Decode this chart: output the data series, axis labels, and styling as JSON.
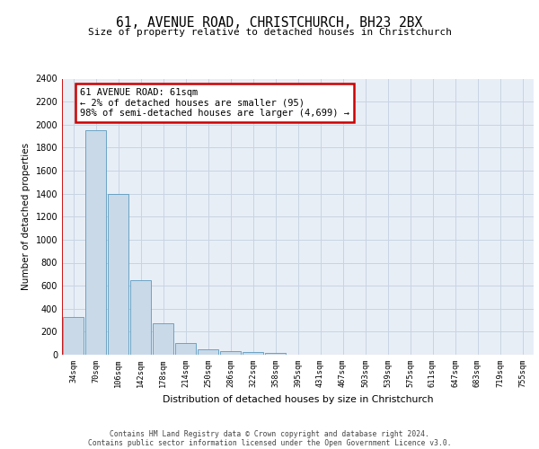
{
  "title": "61, AVENUE ROAD, CHRISTCHURCH, BH23 2BX",
  "subtitle": "Size of property relative to detached houses in Christchurch",
  "xlabel": "Distribution of detached houses by size in Christchurch",
  "ylabel": "Number of detached properties",
  "bar_labels": [
    "34sqm",
    "70sqm",
    "106sqm",
    "142sqm",
    "178sqm",
    "214sqm",
    "250sqm",
    "286sqm",
    "322sqm",
    "358sqm",
    "395sqm",
    "431sqm",
    "467sqm",
    "503sqm",
    "539sqm",
    "575sqm",
    "611sqm",
    "647sqm",
    "683sqm",
    "719sqm",
    "755sqm"
  ],
  "bar_values": [
    325,
    1950,
    1400,
    650,
    275,
    105,
    45,
    35,
    20,
    15,
    0,
    0,
    0,
    0,
    0,
    0,
    0,
    0,
    0,
    0,
    0
  ],
  "bar_color": "#c9d9e8",
  "bar_edge_color": "#5a9abf",
  "grid_color": "#c8d4e4",
  "background_color": "#e8eef6",
  "annotation_box_text": "61 AVENUE ROAD: 61sqm\n← 2% of detached houses are smaller (95)\n98% of semi-detached houses are larger (4,699) →",
  "annotation_box_color": "#cc0000",
  "vline_color": "#cc0000",
  "ylim": [
    0,
    2400
  ],
  "yticks": [
    0,
    200,
    400,
    600,
    800,
    1000,
    1200,
    1400,
    1600,
    1800,
    2000,
    2200,
    2400
  ],
  "footer_line1": "Contains HM Land Registry data © Crown copyright and database right 2024.",
  "footer_line2": "Contains public sector information licensed under the Open Government Licence v3.0."
}
